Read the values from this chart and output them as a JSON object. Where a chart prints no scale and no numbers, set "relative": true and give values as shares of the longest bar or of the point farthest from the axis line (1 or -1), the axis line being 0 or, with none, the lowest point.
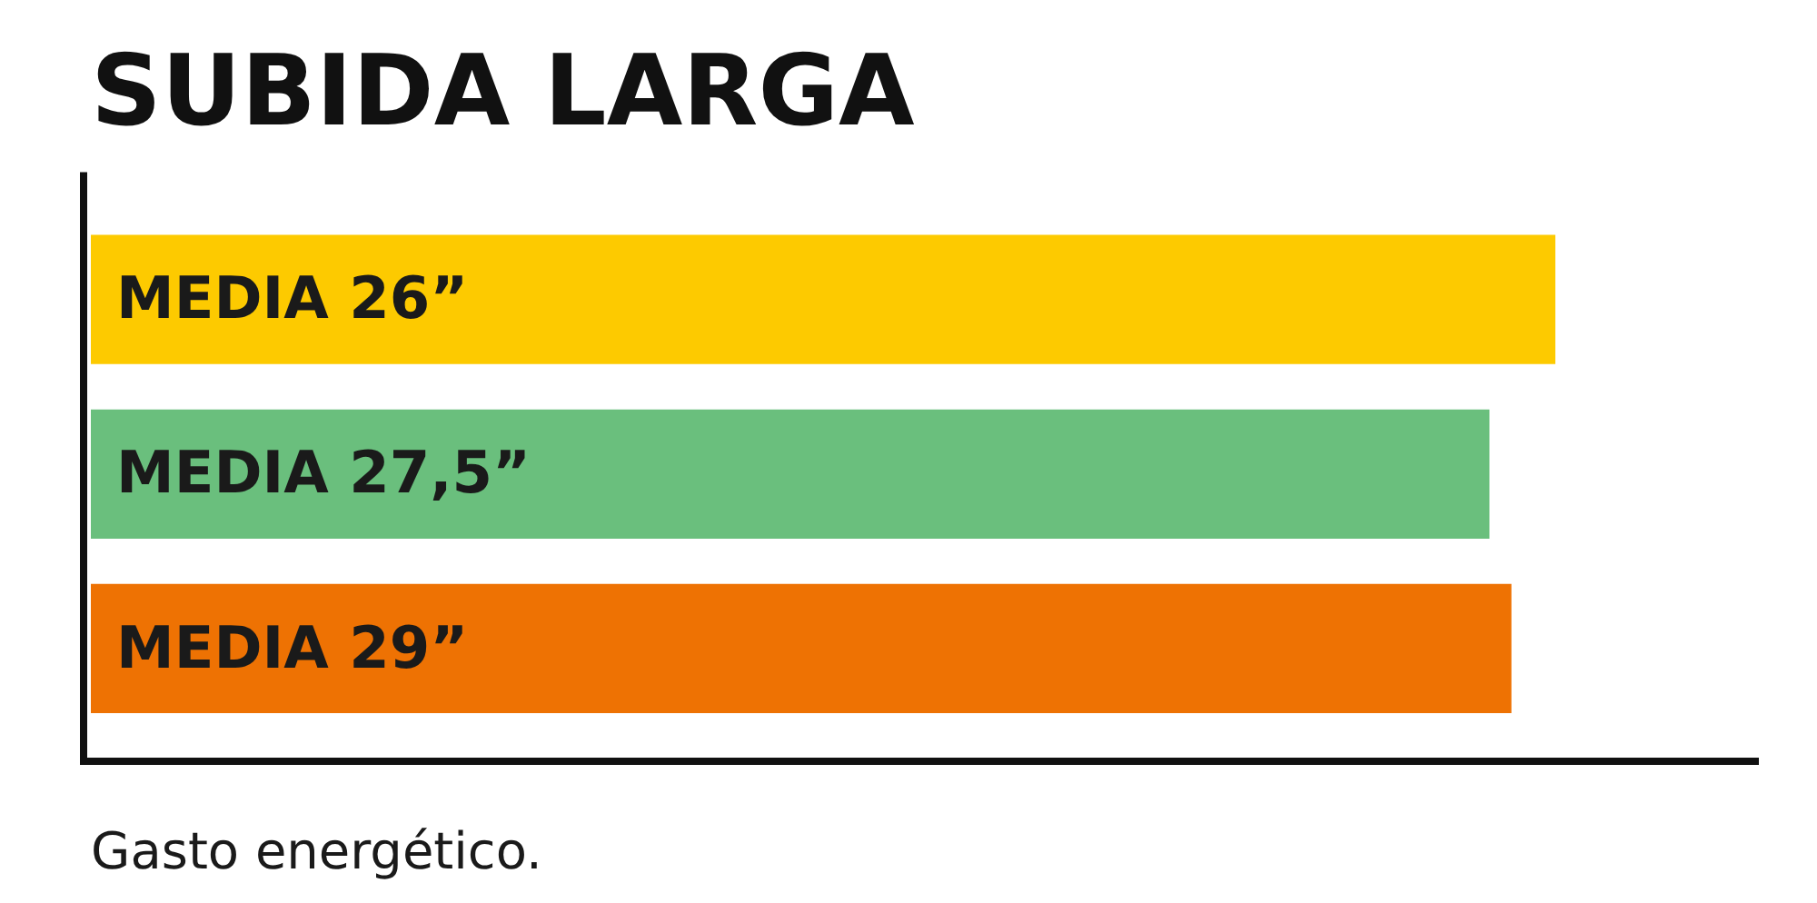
{
  "chart_data": {
    "type": "bar",
    "orientation": "horizontal",
    "relative": true,
    "title": "SUBIDA LARGA",
    "xlabel": "Gasto energético.",
    "categories": [
      "MEDIA 26”",
      "MEDIA 27,5”",
      "MEDIA 29”"
    ],
    "values": [
      1,
      0.955,
      0.97
    ],
    "colors": [
      "#fdca00",
      "#6abf7d",
      "#ee7203"
    ],
    "legend": false
  }
}
